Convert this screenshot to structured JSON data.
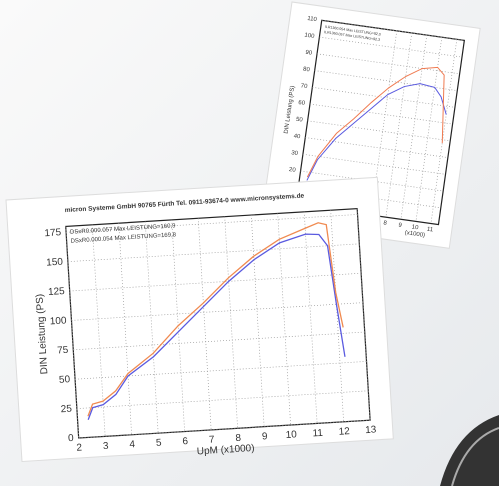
{
  "chart_data": [
    {
      "type": "line",
      "title": "micron Systeme GmbH   90765 Fürth   Tel. 0911-93674-0   www.micronsystems.de",
      "y_label": "DIN Leistung (PS)",
      "x_label": "UpM (x1000)",
      "x": [
        2.4,
        2.6,
        3,
        3.5,
        4,
        5,
        6,
        7,
        8,
        9,
        10,
        11,
        11.5,
        11.8,
        12,
        12.2
      ],
      "series": [
        {
          "name": "DSxR0.000.057  Max LEISTUNG=160,9",
          "color": "#5a5ae0",
          "values": [
            15,
            25,
            27,
            35,
            50,
            65,
            85,
            105,
            125,
            142,
            155,
            161,
            160,
            150,
            100,
            55
          ]
        },
        {
          "name": "DSxR0.000.054  Max LEISTUNG=169,8",
          "color": "#f08a50",
          "values": [
            18,
            28,
            30,
            38,
            52,
            68,
            90,
            108,
            128,
            145,
            158,
            166,
            170,
            168,
            110,
            80
          ]
        }
      ],
      "xlim": [
        2,
        13
      ],
      "xticks": [
        2,
        3,
        4,
        5,
        6,
        7,
        8,
        9,
        10,
        11,
        12,
        13
      ],
      "ylim": [
        0,
        180
      ],
      "yticks": [
        0,
        25,
        50,
        75,
        100,
        125,
        150,
        175
      ],
      "grid": true
    },
    {
      "type": "line",
      "y_label": "DIN Leistung (PS)",
      "x_label": "(x1000)",
      "x": [
        2.5,
        3,
        4,
        5,
        6,
        7,
        8,
        9,
        10,
        10.5,
        11
      ],
      "series": [
        {
          "name": "ILR1360.054  Max LEISTUNG=82,0",
          "color": "#5a5ae0",
          "values": [
            15,
            28,
            42,
            52,
            62,
            72,
            78,
            81,
            80,
            75,
            65
          ]
        },
        {
          "name": "ILR1360.057  Max LEISTUNG=92,3",
          "color": "#f07a50",
          "values": [
            17,
            30,
            45,
            55,
            66,
            76,
            84,
            90,
            92,
            88,
            48
          ]
        }
      ],
      "xlim": [
        2,
        11.5
      ],
      "xticks": [
        7,
        8,
        9,
        10,
        11
      ],
      "ylim": [
        0,
        110
      ],
      "yticks": [
        10,
        20,
        30,
        40,
        50,
        60,
        70,
        80,
        90,
        100,
        110
      ],
      "grid": true
    }
  ]
}
